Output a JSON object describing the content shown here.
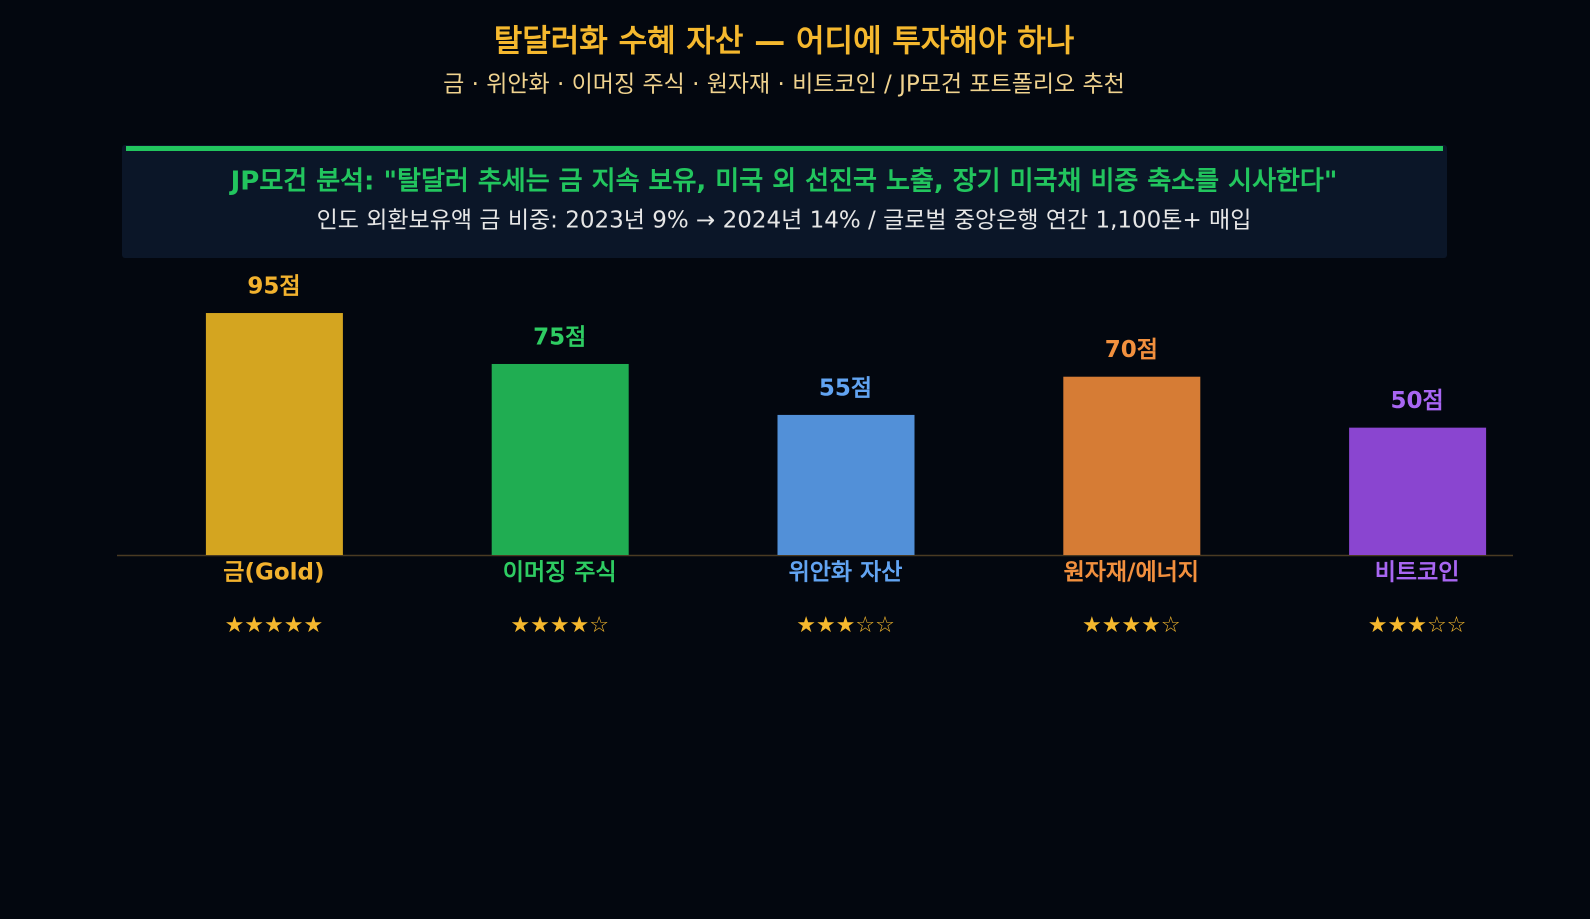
{
  "chart_data": {
    "type": "bar",
    "title": "탈달러화 수혜 자산 — 어디에 투자해야 하나",
    "subtitle": "금 · 위안화 · 이머징 주식 · 원자재 · 비트코인 / JP모건 포트폴리오 추천",
    "box_title": "JP모건 분석: \"탈달러 추세는 금 지속 보유, 미국 외 선진국 노출, 장기 미국채 비중 축소를 시사한다\"",
    "box_text": "인도 외환보유액 금 비중: 2023년 9% → 2024년 14% / 글로벌 중앙은행 연간 1,100톤+ 매입",
    "categories": [
      "금(Gold)",
      "이머징 주식",
      "위안화 자산",
      "원자재/에너지",
      "비트코인"
    ],
    "values": [
      95,
      75,
      55,
      70,
      50
    ],
    "value_labels": [
      "95점",
      "75점",
      "55점",
      "70점",
      "50점"
    ],
    "star_labels": [
      "★★★★★",
      "★★★★☆",
      "★★★☆☆",
      "★★★★☆",
      "★★★☆☆"
    ],
    "colors": [
      "#d4a520",
      "#20ad52",
      "#5290d8",
      "#d67c35",
      "#8a45d0"
    ],
    "label_colors": [
      "#f2b22e",
      "#2ecc62",
      "#62a4f2",
      "#f2903e",
      "#a866f2"
    ],
    "ylim": [
      0,
      100
    ]
  }
}
